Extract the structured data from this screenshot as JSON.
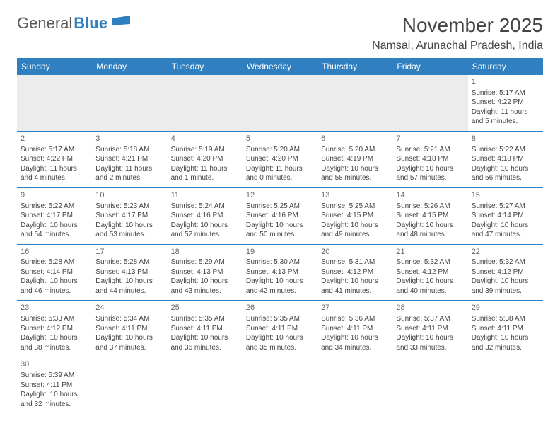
{
  "logo": {
    "text1": "General",
    "text2": "Blue"
  },
  "title": "November 2025",
  "location": "Namsai, Arunachal Pradesh, India",
  "colors": {
    "header_bg": "#2f7fc1",
    "header_text": "#ffffff",
    "border": "#2f7fc1",
    "text": "#444444",
    "empty_bg": "#ececec",
    "page_bg": "#ffffff"
  },
  "fonts": {
    "title_size": 28,
    "location_size": 16,
    "dayhead_size": 12,
    "cell_size": 10
  },
  "day_headers": [
    "Sunday",
    "Monday",
    "Tuesday",
    "Wednesday",
    "Thursday",
    "Friday",
    "Saturday"
  ],
  "weeks": [
    [
      null,
      null,
      null,
      null,
      null,
      null,
      {
        "n": "1",
        "sr": "5:17 AM",
        "ss": "4:22 PM",
        "dl": "11 hours and 5 minutes."
      }
    ],
    [
      {
        "n": "2",
        "sr": "5:17 AM",
        "ss": "4:22 PM",
        "dl": "11 hours and 4 minutes."
      },
      {
        "n": "3",
        "sr": "5:18 AM",
        "ss": "4:21 PM",
        "dl": "11 hours and 2 minutes."
      },
      {
        "n": "4",
        "sr": "5:19 AM",
        "ss": "4:20 PM",
        "dl": "11 hours and 1 minute."
      },
      {
        "n": "5",
        "sr": "5:20 AM",
        "ss": "4:20 PM",
        "dl": "11 hours and 0 minutes."
      },
      {
        "n": "6",
        "sr": "5:20 AM",
        "ss": "4:19 PM",
        "dl": "10 hours and 58 minutes."
      },
      {
        "n": "7",
        "sr": "5:21 AM",
        "ss": "4:18 PM",
        "dl": "10 hours and 57 minutes."
      },
      {
        "n": "8",
        "sr": "5:22 AM",
        "ss": "4:18 PM",
        "dl": "10 hours and 56 minutes."
      }
    ],
    [
      {
        "n": "9",
        "sr": "5:22 AM",
        "ss": "4:17 PM",
        "dl": "10 hours and 54 minutes."
      },
      {
        "n": "10",
        "sr": "5:23 AM",
        "ss": "4:17 PM",
        "dl": "10 hours and 53 minutes."
      },
      {
        "n": "11",
        "sr": "5:24 AM",
        "ss": "4:16 PM",
        "dl": "10 hours and 52 minutes."
      },
      {
        "n": "12",
        "sr": "5:25 AM",
        "ss": "4:16 PM",
        "dl": "10 hours and 50 minutes."
      },
      {
        "n": "13",
        "sr": "5:25 AM",
        "ss": "4:15 PM",
        "dl": "10 hours and 49 minutes."
      },
      {
        "n": "14",
        "sr": "5:26 AM",
        "ss": "4:15 PM",
        "dl": "10 hours and 48 minutes."
      },
      {
        "n": "15",
        "sr": "5:27 AM",
        "ss": "4:14 PM",
        "dl": "10 hours and 47 minutes."
      }
    ],
    [
      {
        "n": "16",
        "sr": "5:28 AM",
        "ss": "4:14 PM",
        "dl": "10 hours and 46 minutes."
      },
      {
        "n": "17",
        "sr": "5:28 AM",
        "ss": "4:13 PM",
        "dl": "10 hours and 44 minutes."
      },
      {
        "n": "18",
        "sr": "5:29 AM",
        "ss": "4:13 PM",
        "dl": "10 hours and 43 minutes."
      },
      {
        "n": "19",
        "sr": "5:30 AM",
        "ss": "4:13 PM",
        "dl": "10 hours and 42 minutes."
      },
      {
        "n": "20",
        "sr": "5:31 AM",
        "ss": "4:12 PM",
        "dl": "10 hours and 41 minutes."
      },
      {
        "n": "21",
        "sr": "5:32 AM",
        "ss": "4:12 PM",
        "dl": "10 hours and 40 minutes."
      },
      {
        "n": "22",
        "sr": "5:32 AM",
        "ss": "4:12 PM",
        "dl": "10 hours and 39 minutes."
      }
    ],
    [
      {
        "n": "23",
        "sr": "5:33 AM",
        "ss": "4:12 PM",
        "dl": "10 hours and 38 minutes."
      },
      {
        "n": "24",
        "sr": "5:34 AM",
        "ss": "4:11 PM",
        "dl": "10 hours and 37 minutes."
      },
      {
        "n": "25",
        "sr": "5:35 AM",
        "ss": "4:11 PM",
        "dl": "10 hours and 36 minutes."
      },
      {
        "n": "26",
        "sr": "5:35 AM",
        "ss": "4:11 PM",
        "dl": "10 hours and 35 minutes."
      },
      {
        "n": "27",
        "sr": "5:36 AM",
        "ss": "4:11 PM",
        "dl": "10 hours and 34 minutes."
      },
      {
        "n": "28",
        "sr": "5:37 AM",
        "ss": "4:11 PM",
        "dl": "10 hours and 33 minutes."
      },
      {
        "n": "29",
        "sr": "5:38 AM",
        "ss": "4:11 PM",
        "dl": "10 hours and 32 minutes."
      }
    ],
    [
      {
        "n": "30",
        "sr": "5:39 AM",
        "ss": "4:11 PM",
        "dl": "10 hours and 32 minutes."
      },
      null,
      null,
      null,
      null,
      null,
      null
    ]
  ],
  "labels": {
    "sunrise": "Sunrise: ",
    "sunset": "Sunset: ",
    "daylight": "Daylight: "
  }
}
